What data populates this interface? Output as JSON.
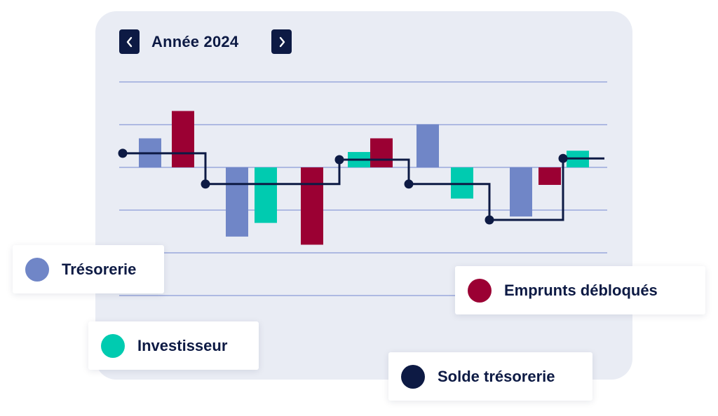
{
  "header": {
    "title": "Année 2024",
    "prev_icon": "chevron-left-icon",
    "next_icon": "chevron-right-icon"
  },
  "colors": {
    "card_background": "#e9ecf4",
    "gridline": "#8a9ad6",
    "navy": "#0d1a44",
    "tresorerie": "#7086c7",
    "investisseur": "#00cbb0",
    "emprunts": "#9b0033",
    "solde": "#0d1a44"
  },
  "legend": [
    {
      "key": "tresorerie",
      "label": "Trésorerie",
      "color": "#7086c7"
    },
    {
      "key": "investisseur",
      "label": "Investisseur",
      "color": "#00cbb0"
    },
    {
      "key": "emprunts",
      "label": "Emprunts débloqués",
      "color": "#9b0033"
    },
    {
      "key": "solde",
      "label": "Solde trésorerie",
      "color": "#0d1a44"
    }
  ],
  "chart_data": {
    "type": "bar",
    "grid": true,
    "ylim": [
      -3,
      2
    ],
    "bars": [
      {
        "series": "tresorerie",
        "value": 0.68
      },
      {
        "series": "emprunts",
        "value": 1.32
      },
      {
        "series": "tresorerie",
        "value": -1.62
      },
      {
        "series": "investisseur",
        "value": -1.3
      },
      {
        "series": "emprunts",
        "value": -1.81
      },
      {
        "series": "investisseur",
        "value": 0.36
      },
      {
        "series": "emprunts",
        "value": 0.68
      },
      {
        "series": "tresorerie",
        "value": 1.01
      },
      {
        "series": "investisseur",
        "value": -0.73
      },
      {
        "series": "tresorerie",
        "value": -1.15
      },
      {
        "series": "emprunts",
        "value": -0.41
      },
      {
        "series": "investisseur",
        "value": 0.39
      }
    ],
    "solde_series": {
      "name": "Solde trésorerie",
      "values": [
        0.33,
        -0.39,
        0.18,
        -0.39,
        -1.23,
        0.21
      ]
    }
  }
}
